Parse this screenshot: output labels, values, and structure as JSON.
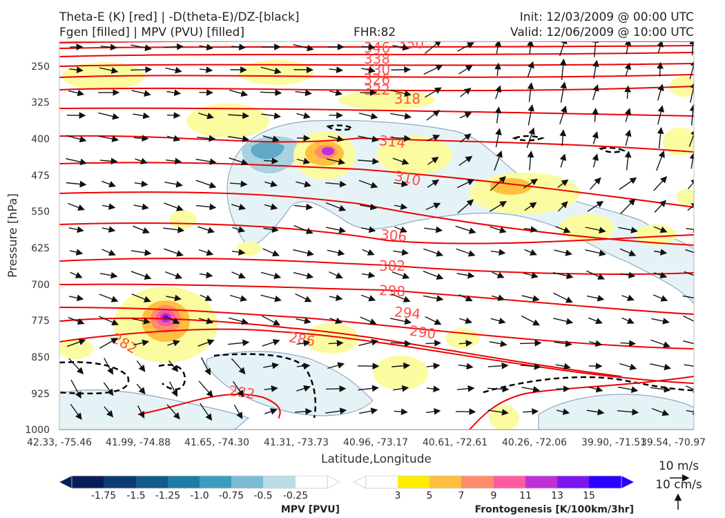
{
  "header": {
    "title_left_1": "Theta-E (K) [red] | -D(theta-E)/DZ-[black]",
    "title_left_2": "Fgen [filled] | MPV (PVU) [filled]",
    "fhr": "FHR:82",
    "init": "Init: 12/03/2009 @ 00:00 UTC",
    "valid": "Valid: 12/06/2009 @ 10:00 UTC"
  },
  "chart_data": {
    "type": "cross-section",
    "xlabel": "Latitude,Longitude",
    "ylabel": "Pressure [hPa]",
    "x_ticks": [
      "42.33, -75.46",
      "41.99, -74.88",
      "41.65, -74.30",
      "41.31, -73.73",
      "40.96, -73.17",
      "40.61, -72.61",
      "40.26, -72.06",
      "39.90, -71.51",
      "39.54, -70.97"
    ],
    "y_ticks": [
      "250",
      "325",
      "400",
      "475",
      "550",
      "625",
      "700",
      "775",
      "850",
      "925",
      "1000"
    ],
    "ylim": [
      1000,
      200
    ],
    "theta_e_labels": [
      {
        "value": "350",
        "x": 0.575,
        "p": 205
      },
      {
        "value": "346",
        "x": 0.5,
        "p": 210
      },
      {
        "value": "338",
        "x": 0.5,
        "p": 226
      },
      {
        "value": "330",
        "x": 0.5,
        "p": 243
      },
      {
        "value": "326",
        "x": 0.5,
        "p": 258
      },
      {
        "value": "322",
        "x": 0.5,
        "p": 282
      },
      {
        "value": "318",
        "x": 0.55,
        "p": 317
      },
      {
        "value": "314",
        "x": 0.52,
        "p": 406
      },
      {
        "value": "310",
        "x": 0.55,
        "p": 462
      },
      {
        "value": "306",
        "x": 0.52,
        "p": 604
      },
      {
        "value": "302",
        "x": 0.52,
        "p": 660
      },
      {
        "value": "298",
        "x": 0.52,
        "p": 710
      },
      {
        "value": "294",
        "x": 0.55,
        "p": 762
      },
      {
        "value": "290",
        "x": 0.57,
        "p": 790
      },
      {
        "value": "286",
        "x": 0.37,
        "p": 800
      },
      {
        "value": "282",
        "x": 0.1,
        "p": 805
      },
      {
        "value": "282",
        "x": 0.28,
        "p": 915
      }
    ],
    "colorbar_mpv": {
      "label": "MPV [PVU]",
      "ticks": [
        "-1.75",
        "-1.5",
        "-1.25",
        "-1.0",
        "-0.75",
        "-0.5",
        "-0.25"
      ],
      "colors": [
        "#081d58",
        "#0c3a73",
        "#145a8a",
        "#1f7ba5",
        "#3e9cbd",
        "#7cbcd3",
        "#bcdde6",
        "#ffffff"
      ]
    },
    "colorbar_fgen": {
      "label": "Frontogenesis [K/100km/3hr]",
      "ticks": [
        "3",
        "5",
        "7",
        "9",
        "11",
        "13",
        "15"
      ],
      "colors": [
        "#ffffff",
        "#ffee00",
        "#ffc040",
        "#ff8c6a",
        "#ff5aa0",
        "#c030d8",
        "#7a18f0",
        "#2a00ff"
      ]
    },
    "reference_vectors": {
      "horizontal": "10 m/s",
      "vertical": "10 cm/s"
    }
  }
}
